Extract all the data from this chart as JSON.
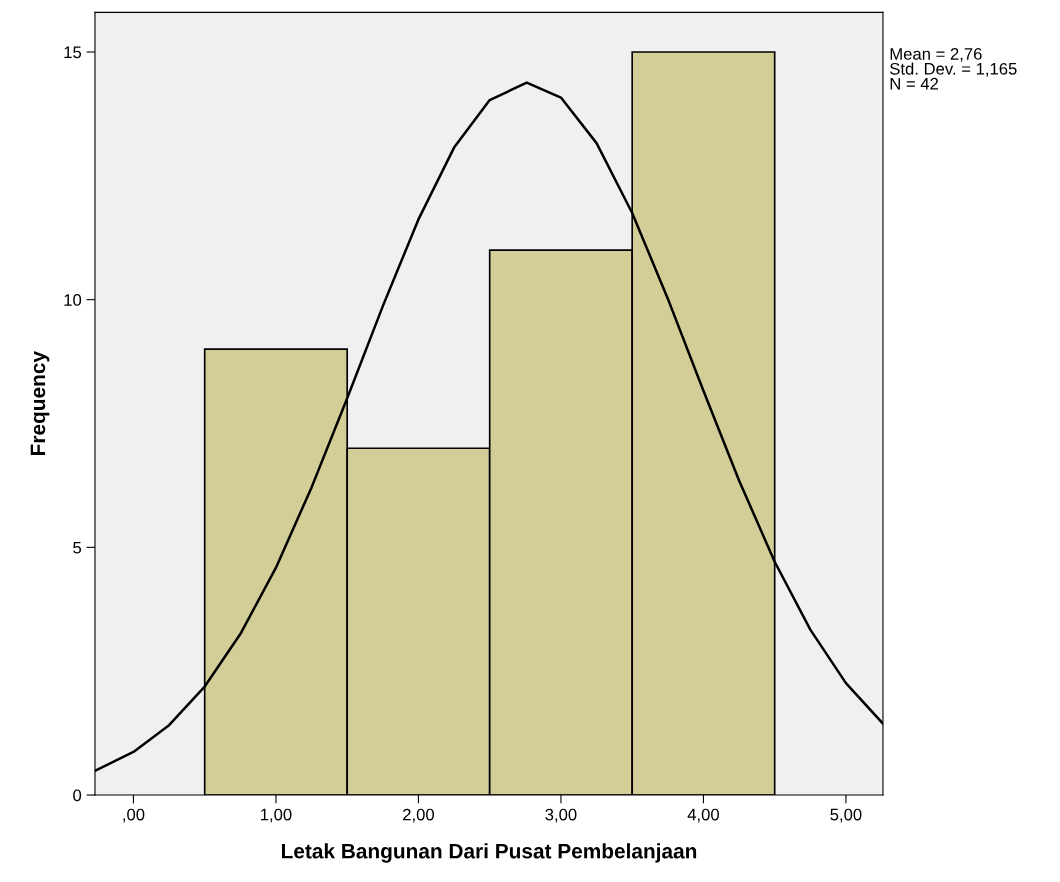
{
  "chart_data": {
    "type": "histogram",
    "xlabel": "Letak Bangunan Dari Pusat Pembelanjaan",
    "ylabel": "Frequency",
    "bins": [
      0.5,
      1.5,
      2.5,
      3.5,
      4.5
    ],
    "series": [
      {
        "color": "#d3ce98",
        "values": [
          9,
          7,
          11,
          15
        ]
      },
      {
        "type": "line",
        "color": "#000000",
        "x": [
          -0.27,
          0,
          0.25,
          0.5,
          0.75,
          1.0,
          1.25,
          1.5,
          1.75,
          2.0,
          2.25,
          2.5,
          2.76,
          3.0,
          3.25,
          3.5,
          3.75,
          4.0,
          4.25,
          4.5,
          4.75,
          5.0,
          5.26
        ],
        "values": [
          0.49,
          0.87,
          1.41,
          2.19,
          3.25,
          4.59,
          6.21,
          8.01,
          9.87,
          11.62,
          13.07,
          14.03,
          14.38,
          14.08,
          13.16,
          11.75,
          10.02,
          8.16,
          6.35,
          4.71,
          3.34,
          2.26,
          1.44
        ]
      }
    ],
    "xlim": [
      -0.27,
      5.26
    ],
    "ylim": [
      0,
      15.8
    ],
    "xticks": [
      {
        "value": 0,
        "label": ",00"
      },
      {
        "value": 1,
        "label": "1,00"
      },
      {
        "value": 2,
        "label": "2,00"
      },
      {
        "value": 3,
        "label": "3,00"
      },
      {
        "value": 4,
        "label": "4,00"
      },
      {
        "value": 5,
        "label": "5,00"
      }
    ],
    "yticks": [
      0,
      5,
      10,
      15
    ],
    "grid": false,
    "marker": "none",
    "line_style": "solid",
    "annotations": [
      "Mean = 2,76\nStd. Dev. = 1,165\nN = 42"
    ]
  }
}
